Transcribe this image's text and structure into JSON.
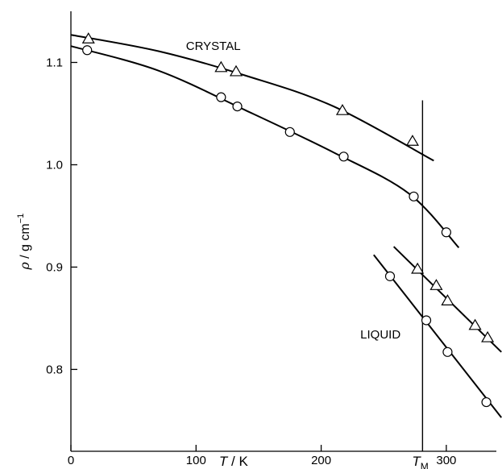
{
  "chart_data": {
    "type": "scatter",
    "title": "",
    "xlabel": {
      "symbol": "T",
      "unit": " / K"
    },
    "ylabel": {
      "symbol": "ρ",
      "unit": " / g cm",
      "sup": "−1"
    },
    "xlim": [
      0,
      340
    ],
    "ylim": [
      0.72,
      1.15
    ],
    "x_ticks": [
      0,
      100,
      200,
      300
    ],
    "x_tick_labels": [
      "0",
      "100",
      "200",
      "300"
    ],
    "y_ticks": [
      0.8,
      0.9,
      1.0,
      1.1
    ],
    "y_tick_labels": [
      "0.8",
      "0.9",
      "1.0",
      "1.1"
    ],
    "vertical_marker": {
      "x": 281,
      "label": "T",
      "sub": "M"
    },
    "annotations": [
      {
        "text": "CRYSTAL",
        "x": 90,
        "y": 1.116
      },
      {
        "text": "LIQUID",
        "x": 230,
        "y": 0.834
      }
    ],
    "series": [
      {
        "marker": "triangle",
        "points": [
          {
            "x": 14,
            "y": 1.123
          },
          {
            "x": 120,
            "y": 1.095
          },
          {
            "x": 132,
            "y": 1.091
          },
          {
            "x": 217,
            "y": 1.053
          },
          {
            "x": 273,
            "y": 1.023
          }
        ],
        "curve": [
          [
            0,
            1.127
          ],
          [
            70,
            1.111
          ],
          [
            140,
            1.087
          ],
          [
            210,
            1.057
          ],
          [
            290,
            1.004
          ]
        ]
      },
      {
        "marker": "circle",
        "points": [
          {
            "x": 13,
            "y": 1.112
          },
          {
            "x": 120,
            "y": 1.066
          },
          {
            "x": 133,
            "y": 1.057
          },
          {
            "x": 175,
            "y": 1.032
          },
          {
            "x": 218,
            "y": 1.008
          },
          {
            "x": 274,
            "y": 0.969
          },
          {
            "x": 300,
            "y": 0.934
          }
        ],
        "curve": [
          [
            0,
            1.116
          ],
          [
            70,
            1.092
          ],
          [
            140,
            1.053
          ],
          [
            210,
            1.012
          ],
          [
            270,
            0.972
          ],
          [
            310,
            0.919
          ]
        ]
      },
      {
        "marker": "triangle",
        "points": [
          {
            "x": 277,
            "y": 0.898
          },
          {
            "x": 292,
            "y": 0.882
          },
          {
            "x": 301,
            "y": 0.867
          },
          {
            "x": 323,
            "y": 0.843
          },
          {
            "x": 333,
            "y": 0.831
          }
        ],
        "curve": [
          [
            258,
            0.92
          ],
          [
            344,
            0.817
          ]
        ]
      },
      {
        "marker": "circle",
        "points": [
          {
            "x": 255,
            "y": 0.891
          },
          {
            "x": 284,
            "y": 0.848
          },
          {
            "x": 301,
            "y": 0.817
          },
          {
            "x": 332,
            "y": 0.768
          }
        ],
        "curve": [
          [
            242,
            0.912
          ],
          [
            344,
            0.753
          ]
        ]
      }
    ]
  }
}
